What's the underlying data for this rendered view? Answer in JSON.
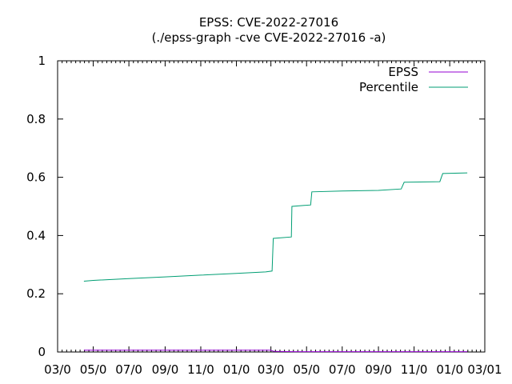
{
  "chart_data": {
    "type": "line",
    "title": "EPSS: CVE-2022-27016",
    "subtitle": "(./epss-graph -cve CVE-2022-27016 -a)",
    "xlabel": "",
    "ylabel": "",
    "ylim": [
      0,
      1
    ],
    "yticks": [
      "0",
      "0.2",
      "0.4",
      "0.6",
      "0.8",
      "1"
    ],
    "xlim": [
      "2022-03-01",
      "2024-03-01"
    ],
    "xticks": [
      "03/0",
      "05/0",
      "07/0",
      "09/0",
      "11/0",
      "01/0",
      "03/0",
      "05/0",
      "07/0",
      "09/0",
      "11/0",
      "01/0",
      "03/01"
    ],
    "legend_position": "top-right",
    "grid": false,
    "series": [
      {
        "name": "EPSS",
        "color": "#9400d3",
        "points": [
          [
            "2022-04-15",
            0.006
          ],
          [
            "2023-02-28",
            0.006
          ],
          [
            "2023-03-07",
            0.002
          ],
          [
            "2023-04-12",
            0.001
          ],
          [
            "2024-01-31",
            0.001
          ]
        ]
      },
      {
        "name": "Percentile",
        "color": "#009e73",
        "points": [
          [
            "2022-04-15",
            0.243
          ],
          [
            "2022-05-01",
            0.246
          ],
          [
            "2022-07-01",
            0.252
          ],
          [
            "2022-09-01",
            0.258
          ],
          [
            "2022-11-01",
            0.264
          ],
          [
            "2023-01-01",
            0.27
          ],
          [
            "2023-02-20",
            0.275
          ],
          [
            "2023-03-03",
            0.278
          ],
          [
            "2023-03-05",
            0.39
          ],
          [
            "2023-04-05",
            0.395
          ],
          [
            "2023-04-06",
            0.5
          ],
          [
            "2023-05-08",
            0.505
          ],
          [
            "2023-05-10",
            0.55
          ],
          [
            "2023-07-01",
            0.553
          ],
          [
            "2023-09-01",
            0.555
          ],
          [
            "2023-10-10",
            0.56
          ],
          [
            "2023-10-15",
            0.583
          ],
          [
            "2023-12-15",
            0.585
          ],
          [
            "2023-12-20",
            0.613
          ],
          [
            "2024-01-31",
            0.615
          ]
        ]
      }
    ]
  }
}
